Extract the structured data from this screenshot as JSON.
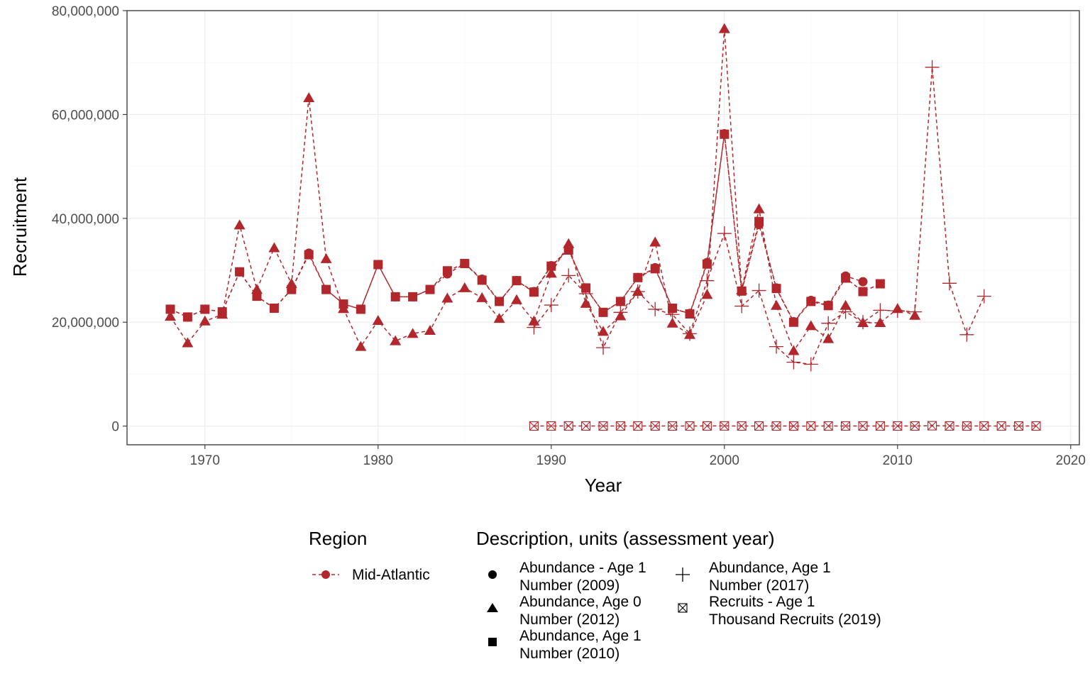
{
  "chart_data": {
    "type": "line",
    "xlabel": "Year",
    "ylabel": "Recruitment",
    "xlim": [
      1965.5,
      2020.5
    ],
    "ylim": [
      -3600000,
      80000000
    ],
    "x_ticks": [
      1970,
      1980,
      1990,
      2000,
      2010,
      2020
    ],
    "x_tick_labels": [
      "1970",
      "1980",
      "1990",
      "2000",
      "2010",
      "2020"
    ],
    "y_ticks": [
      0,
      20000000,
      40000000,
      60000000,
      80000000
    ],
    "y_tick_labels": [
      "0",
      "20,000,000",
      "40,000,000",
      "60,000,000",
      "80,000,000"
    ],
    "grid": true,
    "legend_position": "bottom",
    "color": "#B2272C",
    "legend": {
      "region_title": "Region",
      "region_item": "Mid-Atlantic",
      "description_title": "Description, units (assessment year)",
      "items": [
        {
          "shape": "circle",
          "line1": "Abundance - Age 1",
          "line2": "Number (2009)"
        },
        {
          "shape": "triangle",
          "line1": "Abundance, Age 0",
          "line2": "Number (2012)"
        },
        {
          "shape": "square",
          "line1": "Abundance, Age 1",
          "line2": "Number (2010)"
        },
        {
          "shape": "plus",
          "line1": "Abundance, Age 1",
          "line2": "Number (2017)"
        },
        {
          "shape": "boxx",
          "line1": "Recruits - Age 1",
          "line2": "Thousand Recruits (2019)"
        }
      ]
    },
    "series": [
      {
        "name": "Abundance - Age 1 Number (2009)",
        "shape": "circle",
        "x": [
          1968,
          1969,
          1970,
          1971,
          1972,
          1973,
          1974,
          1975,
          1976,
          1977,
          1978,
          1979,
          1980,
          1981,
          1982,
          1983,
          1984,
          1985,
          1986,
          1987,
          1988,
          1989,
          1990,
          1991,
          1992,
          1993,
          1994,
          1995,
          1996,
          1997,
          1998,
          1999,
          2000,
          2001,
          2002,
          2003,
          2004,
          2005,
          2006,
          2007,
          2008
        ],
        "y": [
          22500000,
          21000000,
          22500000,
          22000000,
          29700000,
          25000000,
          22700000,
          26300000,
          33300000,
          26300000,
          23500000,
          22500000,
          31100000,
          24900000,
          24900000,
          26300000,
          29300000,
          31300000,
          28300000,
          24000000,
          28000000,
          25900000,
          30900000,
          34000000,
          26600000,
          21900000,
          24000000,
          28600000,
          30500000,
          22600000,
          21700000,
          31500000,
          56300000,
          26000000,
          38800000,
          26600000,
          20100000,
          24200000,
          23300000,
          28900000,
          27800000
        ]
      },
      {
        "name": "Abundance, Age 0 Number (2012)",
        "shape": "triangle",
        "x": [
          1968,
          1969,
          1970,
          1971,
          1972,
          1973,
          1974,
          1975,
          1976,
          1977,
          1978,
          1979,
          1980,
          1981,
          1982,
          1983,
          1984,
          1985,
          1986,
          1987,
          1988,
          1989,
          1990,
          1991,
          1992,
          1993,
          1994,
          1995,
          1996,
          1997,
          1998,
          1999,
          2000,
          2001,
          2002,
          2003,
          2004,
          2005,
          2006,
          2007,
          2008,
          2009,
          2010,
          2011
        ],
        "y": [
          21100000,
          16000000,
          20200000,
          21500000,
          38700000,
          26300000,
          34300000,
          27400000,
          63200000,
          32200000,
          22600000,
          15300000,
          20300000,
          16400000,
          17800000,
          18400000,
          24600000,
          26600000,
          24700000,
          20700000,
          24300000,
          20200000,
          29400000,
          35100000,
          23600000,
          18200000,
          21200000,
          25900000,
          35400000,
          19800000,
          17600000,
          25300000,
          76500000,
          26200000,
          41800000,
          23200000,
          14500000,
          19300000,
          16800000,
          23200000,
          19900000,
          19900000,
          22600000,
          21300000
        ]
      },
      {
        "name": "Abundance, Age 1 Number (2010)",
        "shape": "square",
        "x": [
          1968,
          1969,
          1970,
          1971,
          1972,
          1973,
          1974,
          1975,
          1976,
          1977,
          1978,
          1979,
          1980,
          1981,
          1982,
          1983,
          1984,
          1985,
          1986,
          1987,
          1988,
          1989,
          1990,
          1991,
          1992,
          1993,
          1994,
          1995,
          1996,
          1997,
          1998,
          1999,
          2000,
          2001,
          2002,
          2003,
          2004,
          2005,
          2006,
          2007,
          2008,
          2009
        ],
        "y": [
          22500000,
          21000000,
          22500000,
          22000000,
          29700000,
          25000000,
          22700000,
          26300000,
          33000000,
          26300000,
          23500000,
          22500000,
          31100000,
          24900000,
          24900000,
          26300000,
          29900000,
          31300000,
          28100000,
          24000000,
          28000000,
          25800000,
          30800000,
          33900000,
          26600000,
          21900000,
          24000000,
          28600000,
          30300000,
          22700000,
          21600000,
          31200000,
          56200000,
          26000000,
          39400000,
          26500000,
          20000000,
          24000000,
          23200000,
          28500000,
          25900000,
          27400000
        ]
      },
      {
        "name": "Abundance, Age 1 Number (2017)",
        "shape": "plus",
        "x": [
          1989,
          1990,
          1991,
          1992,
          1993,
          1994,
          1995,
          1996,
          1997,
          1998,
          1999,
          2000,
          2001,
          2002,
          2003,
          2004,
          2005,
          2006,
          2007,
          2008,
          2009,
          2010,
          2011,
          2012,
          2013,
          2014,
          2015
        ],
        "y": [
          19000000,
          23300000,
          29000000,
          25500000,
          15100000,
          21900000,
          25900000,
          22500000,
          21500000,
          17800000,
          28000000,
          37100000,
          23100000,
          26100000,
          15300000,
          12300000,
          11900000,
          19800000,
          22000000,
          20000000,
          22300000,
          22200000,
          22000000,
          69100000,
          27500000,
          17600000,
          25000000
        ]
      },
      {
        "name": "Recruits - Age 1 Thousand Recruits (2019)",
        "shape": "boxx",
        "x": [
          1989,
          1990,
          1991,
          1992,
          1993,
          1994,
          1995,
          1996,
          1997,
          1998,
          1999,
          2000,
          2001,
          2002,
          2003,
          2004,
          2005,
          2006,
          2007,
          2008,
          2009,
          2010,
          2011,
          2012,
          2013,
          2014,
          2015,
          2016,
          2017,
          2018
        ],
        "y": [
          20000,
          22000,
          29000,
          25000,
          15000,
          22000,
          26000,
          22000,
          21000,
          18000,
          28000,
          37000,
          23000,
          26000,
          15000,
          12000,
          12000,
          20000,
          22000,
          20000,
          22000,
          22000,
          22000,
          69000,
          27000,
          18000,
          25000,
          20000,
          22000,
          21000
        ]
      }
    ]
  }
}
